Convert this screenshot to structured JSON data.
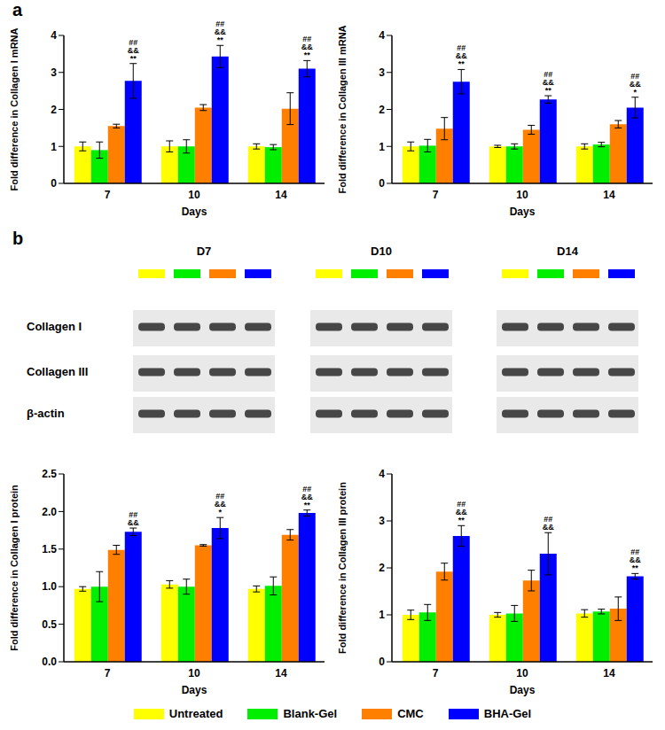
{
  "panel_labels": [
    "a",
    "b"
  ],
  "blot": {
    "time_points": [
      "D7",
      "D10",
      "D14"
    ],
    "rows": [
      "Collagen I",
      "Collagen III",
      "β-actin"
    ]
  },
  "chart_data": [
    {
      "type": "bar",
      "x_label": "Days",
      "y_label": "Fold difference in Collagen I mRNA",
      "categories": [
        "7",
        "10",
        "14"
      ],
      "ylim": [
        0,
        4
      ],
      "yticks": [
        0,
        1,
        2,
        3,
        4
      ],
      "series": [
        {
          "name": "Untreated",
          "color": "#ffff00",
          "values": [
            1.0,
            1.0,
            1.0
          ],
          "errors": [
            0.12,
            0.15,
            0.07
          ]
        },
        {
          "name": "Blank-Gel",
          "color": "#00ee00",
          "values": [
            0.9,
            1.0,
            0.98
          ],
          "errors": [
            0.22,
            0.18,
            0.07
          ]
        },
        {
          "name": "CMC",
          "color": "#ff8000",
          "values": [
            1.55,
            2.05,
            2.02
          ],
          "errors": [
            0.05,
            0.08,
            0.43
          ]
        },
        {
          "name": "BHA-Gel",
          "color": "#0000ff",
          "values": [
            2.77,
            3.43,
            3.1
          ],
          "errors": [
            0.47,
            0.3,
            0.22
          ]
        }
      ],
      "annotations": [
        {
          "series": "BHA-Gel",
          "category": "7",
          "text": [
            "##",
            "&&",
            "**"
          ]
        },
        {
          "series": "BHA-Gel",
          "category": "10",
          "text": [
            "##",
            "&&",
            "**"
          ]
        },
        {
          "series": "BHA-Gel",
          "category": "14",
          "text": [
            "##",
            "&&",
            "**"
          ]
        }
      ]
    },
    {
      "type": "bar",
      "x_label": "Days",
      "y_label": "Fold difference in Collagen III mRNA",
      "categories": [
        "7",
        "10",
        "14"
      ],
      "ylim": [
        0,
        4
      ],
      "yticks": [
        0,
        1,
        2,
        3,
        4
      ],
      "series": [
        {
          "name": "Untreated",
          "color": "#ffff00",
          "values": [
            1.0,
            1.0,
            1.0
          ],
          "errors": [
            0.12,
            0.03,
            0.07
          ]
        },
        {
          "name": "Blank-Gel",
          "color": "#00ee00",
          "values": [
            1.02,
            1.0,
            1.05
          ],
          "errors": [
            0.17,
            0.07,
            0.06
          ]
        },
        {
          "name": "CMC",
          "color": "#ff8000",
          "values": [
            1.48,
            1.45,
            1.6
          ],
          "errors": [
            0.3,
            0.12,
            0.1
          ]
        },
        {
          "name": "BHA-Gel",
          "color": "#0000ff",
          "values": [
            2.75,
            2.27,
            2.05
          ],
          "errors": [
            0.33,
            0.1,
            0.28
          ]
        }
      ],
      "annotations": [
        {
          "series": "BHA-Gel",
          "category": "7",
          "text": [
            "##",
            "&&",
            "**"
          ]
        },
        {
          "series": "BHA-Gel",
          "category": "10",
          "text": [
            "##",
            "&&",
            "**"
          ]
        },
        {
          "series": "BHA-Gel",
          "category": "14",
          "text": [
            "##",
            "&&",
            "*"
          ]
        }
      ]
    },
    {
      "type": "bar",
      "x_label": "Days",
      "y_label": "Fold difference in Collagen I protein",
      "categories": [
        "7",
        "10",
        "14"
      ],
      "ylim": [
        0,
        2.5
      ],
      "yticks": [
        {
          "value": 0,
          "label": "0.0"
        },
        {
          "value": 0.5,
          "label": "0.5"
        },
        {
          "value": 1,
          "label": "1.0"
        },
        {
          "value": 1.5,
          "label": "1.5"
        },
        {
          "value": 2,
          "label": "2.0"
        },
        {
          "value": 2.5,
          "label": "2.5"
        }
      ],
      "series": [
        {
          "name": "Untreated",
          "color": "#ffff00",
          "values": [
            0.97,
            1.03,
            0.97
          ],
          "errors": [
            0.03,
            0.05,
            0.04
          ]
        },
        {
          "name": "Blank-Gel",
          "color": "#00ee00",
          "values": [
            1.0,
            1.0,
            1.01
          ],
          "errors": [
            0.2,
            0.1,
            0.12
          ]
        },
        {
          "name": "CMC",
          "color": "#ff8000",
          "values": [
            1.49,
            1.55,
            1.69
          ],
          "errors": [
            0.06,
            0.01,
            0.07
          ]
        },
        {
          "name": "BHA-Gel",
          "color": "#0000ff",
          "values": [
            1.73,
            1.78,
            1.98
          ],
          "errors": [
            0.05,
            0.14,
            0.04
          ]
        }
      ],
      "annotations": [
        {
          "series": "BHA-Gel",
          "category": "7",
          "text": [
            "##",
            "&&"
          ]
        },
        {
          "series": "BHA-Gel",
          "category": "10",
          "text": [
            "##",
            "&&",
            "*"
          ]
        },
        {
          "series": "BHA-Gel",
          "category": "14",
          "text": [
            "##",
            "&&",
            "**"
          ]
        }
      ]
    },
    {
      "type": "bar",
      "x_label": "Days",
      "y_label": "Fold difference in Collagen III protein",
      "categories": [
        "7",
        "10",
        "14"
      ],
      "ylim": [
        0,
        4
      ],
      "yticks": [
        0,
        1,
        2,
        3,
        4
      ],
      "series": [
        {
          "name": "Untreated",
          "color": "#ffff00",
          "values": [
            1.0,
            1.0,
            1.03
          ],
          "errors": [
            0.1,
            0.05,
            0.08
          ]
        },
        {
          "name": "Blank-Gel",
          "color": "#00ee00",
          "values": [
            1.05,
            1.03,
            1.07
          ],
          "errors": [
            0.17,
            0.17,
            0.05
          ]
        },
        {
          "name": "CMC",
          "color": "#ff8000",
          "values": [
            1.92,
            1.73,
            1.13
          ],
          "errors": [
            0.18,
            0.22,
            0.25
          ]
        },
        {
          "name": "BHA-Gel",
          "color": "#0000ff",
          "values": [
            2.68,
            2.3,
            1.82
          ],
          "errors": [
            0.22,
            0.45,
            0.06
          ]
        }
      ],
      "annotations": [
        {
          "series": "BHA-Gel",
          "category": "7",
          "text": [
            "##",
            "&&",
            "**"
          ]
        },
        {
          "series": "BHA-Gel",
          "category": "10",
          "text": [
            "##",
            "&&"
          ]
        },
        {
          "series": "BHA-Gel",
          "category": "14",
          "text": [
            "##",
            "&&",
            "**"
          ]
        }
      ]
    }
  ]
}
